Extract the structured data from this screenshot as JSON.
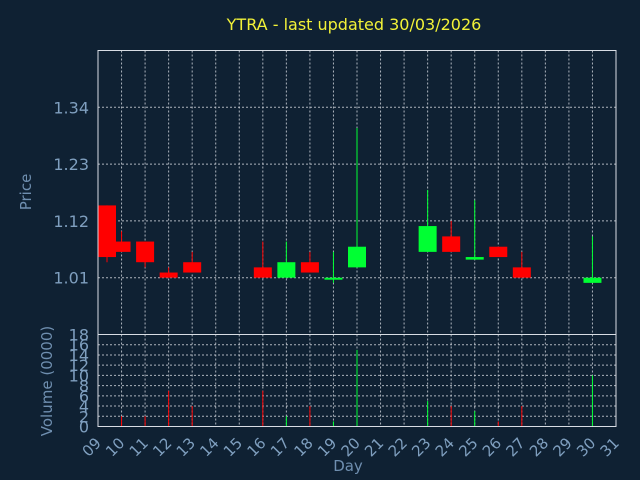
{
  "chart_data": {
    "type": "candlestick",
    "title": "YTRA - last updated 30/03/2026",
    "xlabel": "Day",
    "ylabel": "Price",
    "volume_label": "Volume (0000)",
    "x_tick_labels": [
      "09",
      "10",
      "11",
      "12",
      "13",
      "14",
      "15",
      "16",
      "17",
      "18",
      "19",
      "20",
      "21",
      "22",
      "23",
      "24",
      "25",
      "26",
      "27",
      "28",
      "29",
      "30",
      "31"
    ],
    "price_ticks": [
      1.01,
      1.12,
      1.23,
      1.34
    ],
    "price_ylim": [
      0.9,
      1.45
    ],
    "volume_ticks": [
      0,
      2,
      4,
      6,
      8,
      10,
      12,
      14,
      16,
      18
    ],
    "volume_ylim": [
      0,
      18
    ],
    "grid": true,
    "colors": {
      "up": "#00ff33",
      "down": "#ff0000",
      "title": "#f2f238",
      "background": "#0f2133"
    },
    "candles": [
      {
        "day": "09",
        "open": 1.15,
        "high": 1.15,
        "low": 1.04,
        "close": 1.05,
        "volume": 2
      },
      {
        "day": "10",
        "open": 1.08,
        "high": 1.1,
        "low": 1.06,
        "close": 1.06,
        "volume": 2
      },
      {
        "day": "11",
        "open": 1.08,
        "high": 1.08,
        "low": 1.03,
        "close": 1.04,
        "volume": 2
      },
      {
        "day": "12",
        "open": 1.02,
        "high": 1.03,
        "low": 1.01,
        "close": 1.01,
        "volume": 7
      },
      {
        "day": "13",
        "open": 1.04,
        "high": 1.06,
        "low": 1.02,
        "close": 1.02,
        "volume": 4
      },
      {
        "day": "16",
        "open": 1.03,
        "high": 1.08,
        "low": 1.01,
        "close": 1.01,
        "volume": 7
      },
      {
        "day": "17",
        "open": 1.01,
        "high": 1.08,
        "low": 1.01,
        "close": 1.04,
        "volume": 2
      },
      {
        "day": "18",
        "open": 1.04,
        "high": 1.06,
        "low": 1.02,
        "close": 1.02,
        "volume": 4
      },
      {
        "day": "19",
        "open": 1.01,
        "high": 1.06,
        "low": 1.0,
        "close": 1.01,
        "volume": 1
      },
      {
        "day": "20",
        "open": 1.03,
        "high": 1.3,
        "low": 1.03,
        "close": 1.07,
        "volume": 15
      },
      {
        "day": "23",
        "open": 1.06,
        "high": 1.18,
        "low": 1.06,
        "close": 1.11,
        "volume": 5
      },
      {
        "day": "24",
        "open": 1.09,
        "high": 1.12,
        "low": 1.06,
        "close": 1.06,
        "volume": 4
      },
      {
        "day": "25",
        "open": 1.045,
        "high": 1.16,
        "low": 1.045,
        "close": 1.05,
        "volume": 3
      },
      {
        "day": "26",
        "open": 1.07,
        "high": 1.07,
        "low": 1.05,
        "close": 1.05,
        "volume": 1
      },
      {
        "day": "27",
        "open": 1.03,
        "high": 1.06,
        "low": 1.01,
        "close": 1.01,
        "volume": 4
      },
      {
        "day": "30",
        "open": 1.0,
        "high": 1.09,
        "low": 1.0,
        "close": 1.01,
        "volume": 10
      }
    ]
  }
}
